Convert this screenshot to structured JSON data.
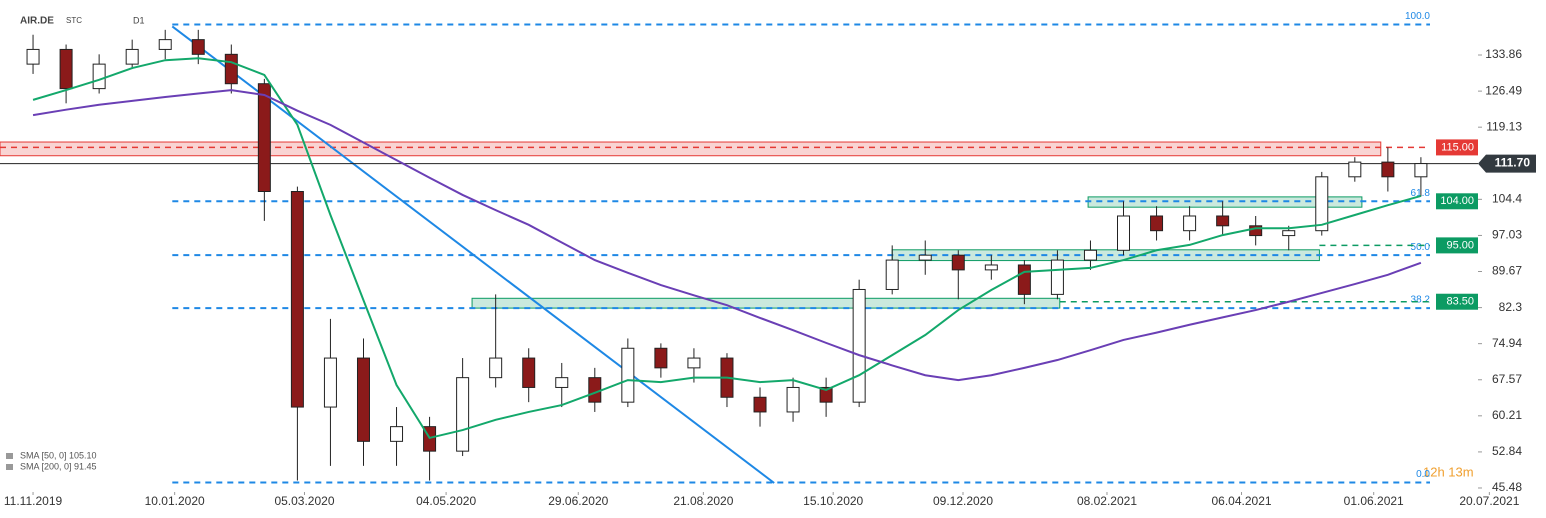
{
  "chart_data": {
    "type": "candlestick",
    "symbol": "AIR.DE",
    "market": "STC",
    "interval": "D1",
    "x": [
      "11.11.2019",
      "25.11.2019",
      "09.12.2019",
      "23.12.2019",
      "06.01.2020",
      "20.01.2020",
      "03.02.2020",
      "17.02.2020",
      "02.03.2020",
      "16.03.2020",
      "30.03.2020",
      "13.04.2020",
      "27.04.2020",
      "11.05.2020",
      "25.05.2020",
      "08.06.2020",
      "22.06.2020",
      "06.07.2020",
      "20.07.2020",
      "03.08.2020",
      "17.08.2020",
      "31.08.2020",
      "14.09.2020",
      "28.09.2020",
      "12.10.2020",
      "26.10.2020",
      "09.11.2020",
      "23.11.2020",
      "07.12.2020",
      "21.12.2020",
      "04.01.2021",
      "18.01.2021",
      "01.02.2021",
      "15.02.2021",
      "01.03.2021",
      "15.03.2021",
      "29.03.2021",
      "12.04.2021",
      "26.04.2021",
      "10.05.2021",
      "24.05.2021",
      "07.06.2021",
      "21.06.2021"
    ],
    "open": [
      132,
      135,
      127,
      132,
      135,
      137,
      134,
      128,
      106,
      62,
      72,
      55,
      58,
      53,
      68,
      72,
      66,
      68,
      63,
      74,
      70,
      72,
      64,
      61,
      66,
      63,
      86,
      92,
      93,
      90,
      91,
      85,
      92,
      94,
      101,
      98,
      101,
      99,
      97,
      98,
      109,
      112,
      109
    ],
    "high": [
      138,
      136,
      134,
      137,
      139,
      139,
      136,
      129,
      107,
      80,
      76,
      62,
      60,
      72,
      85,
      74,
      71,
      70,
      76,
      75,
      74,
      73,
      66,
      68,
      68,
      88,
      95,
      96,
      94,
      93,
      92,
      94,
      96,
      104,
      103,
      103,
      104,
      101,
      99,
      110,
      113,
      115,
      113
    ],
    "low": [
      130,
      124,
      126,
      131,
      133,
      132,
      126,
      100,
      47,
      50,
      50,
      50,
      47,
      52,
      66,
      63,
      62,
      61,
      62,
      68,
      67,
      62,
      58,
      59,
      60,
      62,
      85,
      89,
      84,
      88,
      83,
      84,
      90,
      93,
      96,
      96,
      97,
      95,
      94,
      97,
      108,
      106,
      105
    ],
    "close": [
      135,
      127,
      132,
      135,
      137,
      134,
      128,
      106,
      62,
      72,
      55,
      58,
      53,
      68,
      72,
      66,
      68,
      63,
      74,
      70,
      72,
      64,
      61,
      66,
      63,
      86,
      92,
      93,
      90,
      91,
      85,
      92,
      94,
      101,
      98,
      101,
      99,
      97,
      98,
      109,
      112,
      109,
      111.7
    ],
    "up_color": "#ffffff",
    "down_color": "#8b1a1a",
    "outline_color": "#222222",
    "series": [
      {
        "name": "SMA [50, 0] 105.10",
        "color": "#13a86b",
        "values": [
          124.7,
          126.7,
          128.8,
          131.2,
          132.8,
          133.2,
          132.4,
          129.8,
          119.6,
          101.2,
          83.8,
          66.5,
          55.7,
          57.3,
          59.4,
          61,
          62.4,
          64.9,
          67.5,
          67.1,
          68,
          68,
          67.1,
          67.5,
          65.5,
          68.5,
          72.6,
          76.7,
          81.8,
          85.9,
          89.6,
          90,
          90.4,
          92,
          94,
          95.1,
          97.1,
          98.5,
          98.5,
          99.2,
          101.2,
          103.2,
          105.1
        ]
      },
      {
        "name": "SMA [200, 0] 91.45",
        "color": "#6a3fb5",
        "values": [
          121.6,
          122.7,
          123.7,
          124.5,
          125.3,
          126,
          126.7,
          125.7,
          122.5,
          119.6,
          116,
          112.4,
          108.8,
          105.3,
          102.2,
          99.2,
          95.6,
          92,
          89.4,
          86.9,
          84.8,
          82.8,
          80.2,
          77.7,
          75.1,
          72.6,
          70.5,
          68.5,
          67.5,
          68.5,
          70,
          71.6,
          73.6,
          75.7,
          77.2,
          78.8,
          80.3,
          81.8,
          83.5,
          85.3,
          87.1,
          89,
          91.45
        ]
      }
    ],
    "xlim": [
      "28.10.2019",
      "13.08.2021"
    ],
    "ylim": [
      44.66,
      145.09
    ],
    "xticks": [
      "11.11.2019",
      "10.01.2020",
      "05.03.2020",
      "04.05.2020",
      "29.06.2020",
      "21.08.2020",
      "15.10.2020",
      "09.12.2020",
      "08.02.2021",
      "06.04.2021",
      "01.06.2021",
      "20.07.2021"
    ],
    "yticks": [
      133.86,
      126.49,
      119.13,
      104.4,
      97.03,
      89.67,
      82.3,
      74.94,
      67.57,
      60.21,
      52.84,
      45.48
    ],
    "fib": [
      {
        "label": "100.0",
        "value": 140.1
      },
      {
        "label": "61.8",
        "value": 104.0
      },
      {
        "label": "50.0",
        "value": 93.0
      },
      {
        "label": "38.2",
        "value": 82.2
      },
      {
        "label": "0.0",
        "value": 46.6
      }
    ],
    "fib_from": "09.01.2020",
    "fib_color": "#1e88e5",
    "levels": [
      {
        "value": 115,
        "label": "115.00",
        "color": "#e53935",
        "from": "28.10.2019"
      },
      {
        "value": 104,
        "label": "104.00",
        "color": "#0c9b63"
      },
      {
        "value": 95,
        "label": "95.00",
        "color": "#0c9b63",
        "from": "09.05.2021"
      },
      {
        "value": 83.5,
        "label": "83.50",
        "color": "#0c9b63",
        "from": "19.01.2021"
      }
    ],
    "current": {
      "value": 111.7,
      "label": "111.70"
    },
    "zones": [
      {
        "x": [
          "28.10.2019",
          "04.06.2021"
        ],
        "y": [
          113.3,
          116.1
        ],
        "color": "#e53935"
      },
      {
        "x": [
          "15.05.2020",
          "19.01.2021"
        ],
        "y": [
          82.2,
          84.2
        ],
        "color": "#0c9b63"
      },
      {
        "x": [
          "09.11.2020",
          "09.05.2021"
        ],
        "y": [
          91.9,
          94.1
        ],
        "color": "#0c9b63"
      },
      {
        "x": [
          "31.01.2021",
          "27.05.2021"
        ],
        "y": [
          102.8,
          104.9
        ],
        "color": "#0c9b63"
      }
    ],
    "trendline": {
      "x": [
        "09.01.2020",
        "20.09.2020"
      ],
      "y": [
        139.7,
        46.5
      ],
      "color": "#1e88e5"
    },
    "timer": "12h 13m"
  }
}
